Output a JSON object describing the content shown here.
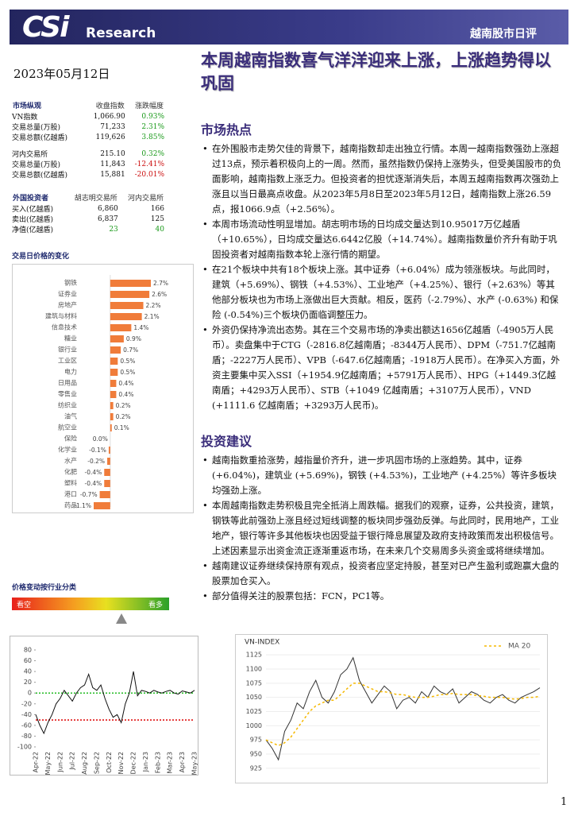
{
  "header": {
    "logo": "CSi",
    "brand": "Research",
    "report_name": "越南股市日评"
  },
  "date": "2023年05月12日",
  "title": "本周越南指数喜气洋洋迎来上涨，上涨趋势得以巩固",
  "market_table": {
    "headers": [
      "市场纵观",
      "收盘指数",
      "涨跌幅度"
    ],
    "rows": [
      [
        "VN指数",
        "1,066.90",
        "0.93%"
      ],
      [
        "交易总量(万股)",
        "71,233",
        "2.31%"
      ],
      [
        "交易总额(亿越盾)",
        "119,626",
        "3.85%"
      ],
      [
        "河内交易所",
        "215.10",
        "0.32%"
      ],
      [
        "交易总量(万股)",
        "11,843",
        "-12.41%"
      ],
      [
        "交易总额(亿越盾)",
        "15,881",
        "-20.01%"
      ]
    ]
  },
  "foreign_table": {
    "headers": [
      "外国投资者",
      "胡志明交易所",
      "河内交易所"
    ],
    "rows": [
      [
        "买入(亿越盾)",
        "6,860",
        "166"
      ],
      [
        "卖出(亿越盾)",
        "6,837",
        "125"
      ],
      [
        "净值(亿越盾)",
        "23",
        "40"
      ]
    ]
  },
  "sector_chart": {
    "type": "bar",
    "title": "交易日价格的变化",
    "color": "#f07c3a",
    "categories": [
      "钢铁",
      "证券业",
      "房地产",
      "建筑与材料",
      "信息技术",
      "糖业",
      "银行业",
      "工业区",
      "电力",
      "日用品",
      "零售业",
      "纺织业",
      "油气",
      "航空业",
      "保险",
      "化学业",
      "水产",
      "化肥",
      "塑料",
      "港口",
      "药品"
    ],
    "values": [
      2.7,
      2.6,
      2.2,
      2.1,
      1.4,
      0.9,
      0.7,
      0.5,
      0.5,
      0.4,
      0.4,
      0.2,
      0.2,
      0.1,
      0.0,
      -0.1,
      -0.2,
      -0.4,
      -0.4,
      -0.7,
      -1.1
    ],
    "value_labels": [
      "2.7%",
      "2.6%",
      "2.2%",
      "2.1%",
      "1.4%",
      "0.9%",
      "0.7%",
      "0.5%",
      "0.5%",
      "0.4%",
      "0.4%",
      "0.2%",
      "0.2%",
      "0.1%",
      "0.0%",
      "-0.1%",
      "-0.2%",
      "-0.4%",
      "-0.4%",
      "-0.7%",
      "-1.1%"
    ]
  },
  "gauge": {
    "title": "价格变动按行业分类",
    "left_label": "看空",
    "right_label": "看多"
  },
  "oscillator_chart": {
    "type": "line",
    "categories": [
      "Apr-22",
      null,
      null,
      "May-22",
      null,
      null,
      "Jun-22",
      null,
      null,
      "Jul-22",
      null,
      null,
      "Aug-22",
      null,
      null,
      "Sep-22",
      null,
      null,
      "Oct-22",
      null,
      null,
      "Nov-22",
      null,
      null,
      "Dec-22",
      null,
      null,
      "Jan-23",
      null,
      null,
      "Feb-23",
      null,
      null,
      "Mar-23",
      null,
      null,
      "Apr-23",
      null,
      null,
      "May-23"
    ],
    "series": [
      {
        "color": "#111111",
        "values": [
          -40,
          -60,
          -75,
          -55,
          -40,
          -20,
          -10,
          5,
          -5,
          -15,
          0,
          10,
          15,
          35,
          10,
          5,
          15,
          -10,
          -30,
          -45,
          -40,
          -55,
          -20,
          0,
          40,
          -5,
          5,
          3,
          0,
          5,
          2,
          0,
          3,
          5,
          0,
          -2,
          4,
          2,
          0,
          5
        ]
      }
    ],
    "ylim": [
      -100,
      80
    ],
    "yticks": [
      80,
      60,
      40,
      20,
      0,
      -20,
      -40,
      -60,
      -80,
      -100
    ],
    "reference_lines": [
      {
        "value": 0,
        "color": "#22bb22"
      },
      {
        "value": -50,
        "color": "#dd0000"
      }
    ]
  },
  "vnindex_chart": {
    "type": "line",
    "title": "VN-INDEX",
    "grid": true,
    "ylim": [
      915,
      1135
    ],
    "yticks": [
      925,
      950,
      975,
      1000,
      1025,
      1050,
      1075,
      1100,
      1125
    ],
    "series": [
      {
        "color": "#333333",
        "values": [
          975,
          960,
          940,
          990,
          1010,
          1040,
          1030,
          1060,
          1080,
          1050,
          1040,
          1060,
          1090,
          1100,
          1120,
          1080,
          1060,
          1040,
          1055,
          1070,
          1060,
          1030,
          1045,
          1050,
          1040,
          1060,
          1050,
          1070,
          1060,
          1055,
          1065,
          1040,
          1050,
          1060,
          1055,
          1045,
          1040,
          1050,
          1055,
          1045,
          1040,
          1050,
          1055,
          1060,
          1066.9
        ]
      },
      {
        "name": "MA 20",
        "color": "#f5b800",
        "dashed": true,
        "values": [
          975,
          970,
          965,
          970,
          980,
          995,
          1010,
          1025,
          1035,
          1040,
          1045,
          1045,
          1055,
          1065,
          1075,
          1075,
          1070,
          1065,
          1060,
          1060,
          1058,
          1055,
          1055,
          1052,
          1050,
          1050,
          1050,
          1052,
          1055,
          1055,
          1057,
          1055,
          1055,
          1055,
          1053,
          1052,
          1050,
          1050,
          1050,
          1048,
          1047,
          1048,
          1050,
          1050,
          1052
        ]
      }
    ]
  },
  "sections": [
    {
      "heading": "市场热点",
      "bullets": [
        "在外围股市走势欠佳的背景下，越南指数却走出独立行情。本周一越南指数强劲上涨超过13点，预示着积极向上的一周。然而，虽然指数仍保持上涨势头，但受美国股市的负面影响，越南指数上涨乏力。但投资者的担忧逐渐消失后，本周五越南指数再次强劲上涨且以当日最高点收盘。从2023年5月8日至2023年5月12日，越南指数上涨26.59点，报1066.9点（+2.56%）。",
        "本周市场流动性明显增加。胡志明市场的日均成交量达到10.95017万亿越盾（+10.65%），日均成交量达6.6442亿股（+14.74%）。越南指数量价齐升有助于巩固投资者对越南指数本轮上涨行情的期望。",
        "在21个板块中共有18个板块上涨。其中证券（+6.04%）成为领涨板块。与此同时，建筑（+5.69%）、钢铁（+4.53%）、工业地产（+4.25%）、银行（+2.63%）等其他部分板块也为市场上涨做出巨大贡献。相反，医药（-2.79%）、水产 (-0.63%) 和保险 (-0.54%)三个板块仍面临调整压力。",
        "外资仍保持净流出态势。其在三个交易市场的净卖出额达1656亿越盾（-4905万人民币）。卖盘集中于CTG（-2816.8亿越南盾；-8344万人民币）、DPM（-751.7亿越南盾；-2227万人民币）、VPB（-647.6亿越南盾；-1918万人民币）。在净买入方面，外资主要集中买入SSI（+1954.9亿越南盾；+5791万人民币）、HPG（+1449.3亿越南盾；+4293万人民币）、STB（+1049 亿越南盾；+3107万人民币），VND (+1111.6 亿越南盾；+3293万人民币)。"
      ]
    },
    {
      "heading": "投资建议",
      "bullets": [
        "越南指数重拾涨势，越指量价齐升，进一步巩固市场的上涨趋势。其中，证券(+6.04%)，建筑业 (+5.69%)，钢铁 (+4.53%)，工业地产 (+4.25%）等许多板块均强劲上涨。",
        "本周越南指数走势积极且完全抵消上周跌幅。据我们的观察，证券，公共投资，建筑，钢铁等此前强劲上涨且经过短线调整的板块同步强劲反弹。与此同时，民用地产，工业地产，银行等许多其他板块也因受益于银行降息展望及政府支持政策而发出积极信号。上述因素显示出资金流正逐渐重返市场，在未来几个交易周多头资金或将继续增加。",
        "越南建议证券继续保持原有观点，投资者应坚定持股，甚至对已产生盈利或跑赢大盘的股票加仓买入。",
        "部分值得关注的股票包括：FCN，PC1等。"
      ]
    }
  ],
  "page_number": "1"
}
